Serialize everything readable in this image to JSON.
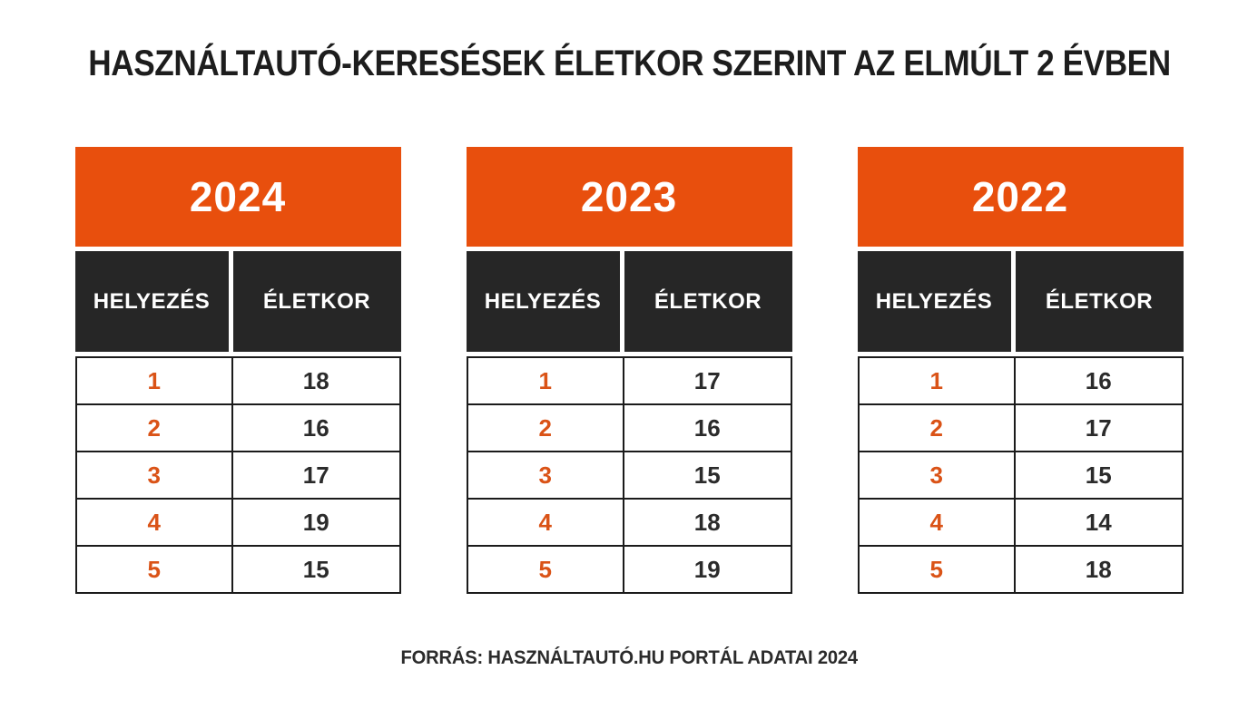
{
  "title": "HASZNÁLTAUTÓ-KERESÉSEK ÉLETKOR SZERINT AZ ELMÚLT 2 ÉVBEN",
  "footer": "FORRÁS: HASZNÁLTAUTÓ.HU PORTÁL ADATAI 2024",
  "colors": {
    "accent_orange": "#E84F0D",
    "rank_orange": "#DA5317",
    "header_dark": "#262626",
    "border": "#1B1B1B",
    "title_text": "#1D1D1D",
    "value_text": "#2B2B2B",
    "background": "#FFFFFF"
  },
  "columns": {
    "rank_label": "HELYEZÉS",
    "age_label": "ÉLETKOR"
  },
  "tables": [
    {
      "year": "2024",
      "rows": [
        {
          "rank": "1",
          "age": "18"
        },
        {
          "rank": "2",
          "age": "16"
        },
        {
          "rank": "3",
          "age": "17"
        },
        {
          "rank": "4",
          "age": "19"
        },
        {
          "rank": "5",
          "age": "15"
        }
      ]
    },
    {
      "year": "2023",
      "rows": [
        {
          "rank": "1",
          "age": "17"
        },
        {
          "rank": "2",
          "age": "16"
        },
        {
          "rank": "3",
          "age": "15"
        },
        {
          "rank": "4",
          "age": "18"
        },
        {
          "rank": "5",
          "age": "19"
        }
      ]
    },
    {
      "year": "2022",
      "rows": [
        {
          "rank": "1",
          "age": "16"
        },
        {
          "rank": "2",
          "age": "17"
        },
        {
          "rank": "3",
          "age": "15"
        },
        {
          "rank": "4",
          "age": "14"
        },
        {
          "rank": "5",
          "age": "18"
        }
      ]
    }
  ],
  "chart_data": {
    "type": "table",
    "title": "HASZNÁLTAUTÓ-KERESÉSEK ÉLETKOR SZERINT AZ ELMÚLT 2 ÉVBEN",
    "tables": [
      {
        "year": "2024",
        "columns": [
          "HELYEZÉS",
          "ÉLETKOR"
        ],
        "rows": [
          [
            1,
            18
          ],
          [
            2,
            16
          ],
          [
            3,
            17
          ],
          [
            4,
            19
          ],
          [
            5,
            15
          ]
        ]
      },
      {
        "year": "2023",
        "columns": [
          "HELYEZÉS",
          "ÉLETKOR"
        ],
        "rows": [
          [
            1,
            17
          ],
          [
            2,
            16
          ],
          [
            3,
            15
          ],
          [
            4,
            18
          ],
          [
            5,
            19
          ]
        ]
      },
      {
        "year": "2022",
        "columns": [
          "HELYEZÉS",
          "ÉLETKOR"
        ],
        "rows": [
          [
            1,
            16
          ],
          [
            2,
            17
          ],
          [
            3,
            15
          ],
          [
            4,
            14
          ],
          [
            5,
            18
          ]
        ]
      }
    ],
    "source": "FORRÁS: HASZNÁLTAUTÓ.HU PORTÁL ADATAI 2024",
    "layout": {
      "tables_side_by_side": 3,
      "rank_color": "#DA5317",
      "header_color": "#E84F0D"
    }
  }
}
